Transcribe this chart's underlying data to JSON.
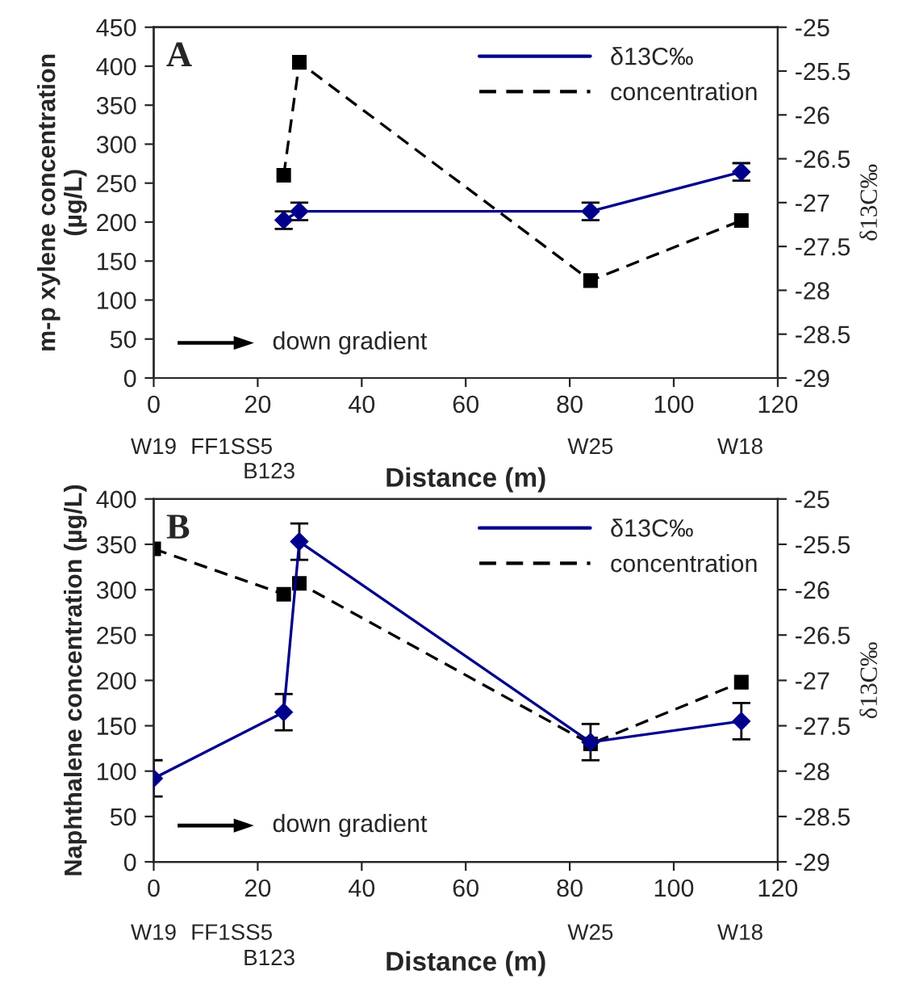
{
  "chart_data": [
    {
      "type": "line",
      "xlabel": "Distance (m)",
      "ylabel": "m-p xylene concentration\n(µg/L)",
      "y2label": "δ13C‰",
      "xlim": [
        0,
        120
      ],
      "xticks": [
        0,
        20,
        40,
        60,
        80,
        100,
        120
      ],
      "ylim": [
        0,
        450
      ],
      "yticks": [
        0,
        50,
        100,
        150,
        200,
        250,
        300,
        350,
        400,
        450
      ],
      "y2lim": [
        -29,
        -25
      ],
      "y2ticks": [
        -29,
        -28.5,
        -28,
        -27.5,
        -27,
        -26.5,
        -26,
        -25.5,
        -25
      ],
      "legend": "top right",
      "grid": false,
      "series": [
        {
          "name": "δ13C‰",
          "axis": "y2",
          "color": "#00008b",
          "marker": "diamond",
          "line_style": "solid",
          "x": [
            25,
            28,
            84,
            113
          ],
          "values": [
            -27.2,
            -27.1,
            -27.1,
            -26.65
          ],
          "errors": [
            0.1,
            0.1,
            0.1,
            0.1
          ]
        },
        {
          "name": "concentration",
          "color": "#000000",
          "marker": "square",
          "line_style": "dashed",
          "x": [
            25,
            28,
            84,
            113
          ],
          "values": [
            260,
            405,
            125,
            202
          ]
        }
      ],
      "annotations": [
        "A",
        "down gradient",
        "W19",
        "FF1SS5",
        "B123",
        "W25",
        "W18"
      ]
    },
    {
      "type": "line",
      "xlabel": "Distance (m)",
      "ylabel": "Naphthalene concentration (µg/L)",
      "y2label": "δ13C‰",
      "xlim": [
        0,
        120
      ],
      "xticks": [
        0,
        20,
        40,
        60,
        80,
        100,
        120
      ],
      "ylim": [
        0,
        400
      ],
      "yticks": [
        0,
        50,
        100,
        150,
        200,
        250,
        300,
        350,
        400
      ],
      "y2lim": [
        -29,
        -25
      ],
      "y2ticks": [
        -29,
        -28.5,
        -28,
        -27.5,
        -27,
        -26.5,
        -26,
        -25.5,
        -25
      ],
      "legend": "top right",
      "grid": false,
      "series": [
        {
          "name": "δ13C‰",
          "axis": "y2",
          "color": "#00008b",
          "marker": "diamond",
          "line_style": "solid",
          "x": [
            0,
            25,
            28,
            84,
            113
          ],
          "values": [
            -28.08,
            -27.35,
            -25.47,
            -27.68,
            -27.45
          ],
          "errors": [
            0.2,
            0.2,
            0.2,
            0.2,
            0.2
          ]
        },
        {
          "name": "concentration",
          "color": "#000000",
          "marker": "square",
          "line_style": "dashed",
          "x": [
            0,
            25,
            28,
            84,
            113
          ],
          "values": [
            345,
            295,
            307,
            130,
            198
          ]
        }
      ],
      "annotations": [
        "B",
        "down gradient",
        "W19",
        "FF1SS5",
        "B123",
        "W25",
        "W18"
      ]
    }
  ]
}
